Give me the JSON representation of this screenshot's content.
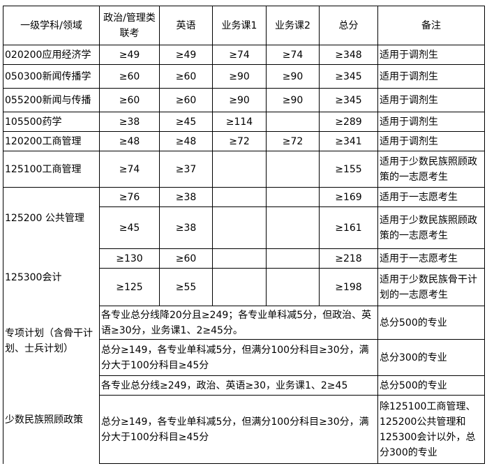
{
  "headers": [
    "一级学科/领域",
    "政治/管理类联考",
    "英语",
    "业务课1",
    "业务课2",
    "总分",
    "备注"
  ],
  "rows": [
    [
      "020200应用经济学",
      "≥49",
      "≥49",
      "≥74",
      "≥74",
      "≥348",
      "适用于调剂生"
    ],
    [
      "050300新闻传播学",
      "≥60",
      "≥60",
      "≥90",
      "≥90",
      "≥345",
      "适用于调剂生"
    ],
    [
      "055200新闻与传播",
      "≥60",
      "≥60",
      "≥90",
      "≥90",
      "≥345",
      "适用于调剂生"
    ],
    [
      "105500药学",
      "≥38",
      "≥45",
      "≥114",
      "",
      "≥289",
      "适用于调剂生"
    ],
    [
      "120200工商管理",
      "≥48",
      "≥48",
      "≥72",
      "≥72",
      "≥341",
      "适用于调剂生"
    ],
    [
      "125100工商管理",
      "≥74",
      "≥37",
      "",
      "",
      "≥155",
      "适用于少数民族照顾政策的一志愿考生"
    ]
  ],
  "group_rows": [
    {
      "subject": "125200 公共管理",
      "lines": [
        [
          "≥76",
          "≥38",
          "",
          "",
          "≥169",
          "适用于一志愿考生"
        ],
        [
          "≥45",
          "≥38",
          "",
          "",
          "≥161",
          "适用于少数民族照顾政策的一志愿考生"
        ]
      ]
    },
    {
      "subject": "125300会计",
      "lines": [
        [
          "≥130",
          "≥60",
          "",
          "",
          "≥218",
          "适用于一志愿考生"
        ],
        [
          "≥125",
          "≥55",
          "",
          "",
          "≥198",
          "适用于少数民族骨干计划的一志愿考生"
        ]
      ]
    }
  ],
  "special_rows": [
    {
      "subject": "专项计划（含骨干计划、士兵计划）",
      "lines": [
        [
          "各专业总分线降20分且≥249；各专业单科减5分，但政治、英语≥30分，业务课1、2≥45分。",
          "总分500的专业"
        ],
        [
          "总分≥149，各专业单科减5分，但满分100分科目≥30分，满分大于100分科目≥45分",
          "总分300的专业"
        ]
      ]
    },
    {
      "subject": "少数民族照顾政策",
      "lines": [
        [
          "各专业总分线≥249，政治、英语≥30，业务课1、2≥45",
          "总分500的专业"
        ],
        [
          "总分≥149，各专业单科减5分，但满分100分科目≥30分，满分大于100分科目≥45分",
          "除125100工商管理、125200公共管理和125300会计以外，总分300的专业"
        ]
      ]
    }
  ]
}
